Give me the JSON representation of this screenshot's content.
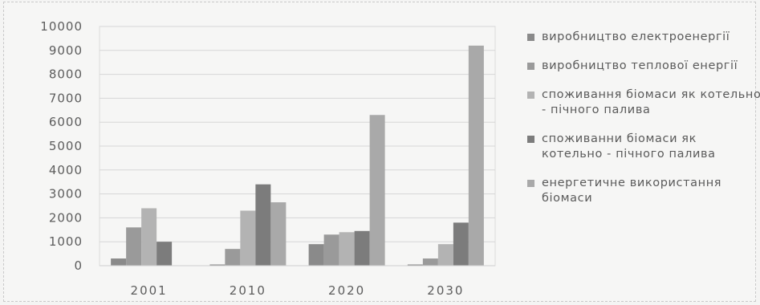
{
  "chart_data": {
    "type": "bar",
    "categories": [
      "2001",
      "2010",
      "2020",
      "2030"
    ],
    "series": [
      {
        "name": "виробництво електроенергії",
        "values": [
          300,
          50,
          900,
          50
        ],
        "color": "#8a8a8a"
      },
      {
        "name": "виробництво теплової енергії",
        "values": [
          1600,
          700,
          1300,
          300
        ],
        "color": "#9a9a9a"
      },
      {
        "name": "споживання біомаси як котельно - пічного палива",
        "values": [
          2400,
          2300,
          1400,
          900
        ],
        "color": "#b3b3b3"
      },
      {
        "name": "споживанни біомаси як котельно - пічного палива",
        "values": [
          1000,
          3400,
          1450,
          1800
        ],
        "color": "#7c7c7c"
      },
      {
        "name": "енергетичне використання біомаси",
        "values": [
          0,
          2650,
          6300,
          9200
        ],
        "color": "#a9a9a9"
      }
    ],
    "y_ticks": [
      "0",
      "1000",
      "2000",
      "3000",
      "4000",
      "5000",
      "6000",
      "7000",
      "8000",
      "9000",
      "10000"
    ],
    "ylim": [
      0,
      10000
    ],
    "grid": true,
    "legend_position": "right"
  }
}
